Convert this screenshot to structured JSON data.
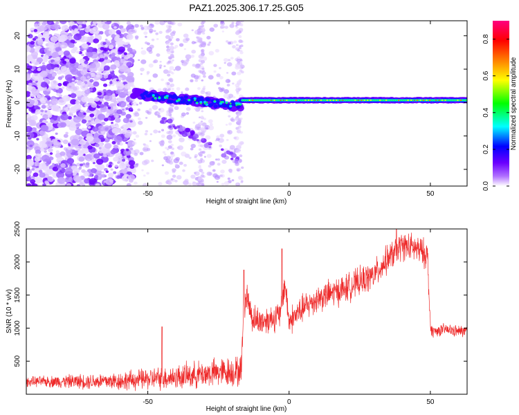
{
  "title": "PAZ1.2025.306.17.25.G05",
  "chart_data": [
    {
      "type": "heatmap",
      "name": "spectrogram",
      "xlabel": "Height of straight line (km)",
      "ylabel": "Frequency (Hz)",
      "xlim": [
        -93,
        63
      ],
      "ylim": [
        -25,
        24.5
      ],
      "xticks": [
        -50,
        0,
        50
      ],
      "yticks": [
        -20,
        -10,
        0,
        10,
        20
      ],
      "xticklabels": [
        "-50",
        "0",
        "50"
      ],
      "yticklabels": [
        "-20",
        "-10",
        "0",
        "10",
        "20"
      ],
      "description_bands": [
        {
          "x_from": -93,
          "x_to": -55,
          "kind": "noise",
          "density": "high"
        },
        {
          "x_from": -55,
          "x_to": -17,
          "kind": "signal+noise",
          "center_hz_from": 2.5,
          "center_hz_to": -1
        },
        {
          "x_from": -17,
          "x_to": 63,
          "kind": "signal",
          "center_hz": 0.7
        }
      ],
      "colorbar": {
        "label": "Normalized spectral amplitude",
        "range": [
          0.0,
          0.9
        ],
        "ticks": [
          0.0,
          0.2,
          0.4,
          0.6,
          0.8
        ],
        "ticklabels": [
          "0.0",
          "0.2",
          "0.4",
          "0.6",
          "0.8"
        ],
        "colormap": [
          "#ffffff",
          "#6b00ff",
          "#0000ff",
          "#00ffff",
          "#00ff00",
          "#ffff00",
          "#ff8000",
          "#ff0000",
          "#ff0080"
        ]
      }
    },
    {
      "type": "line",
      "name": "snr",
      "xlabel": "Height of straight line (km)",
      "ylabel": "SNR (10 * v/v)",
      "xlim": [
        -93,
        63
      ],
      "ylim": [
        0,
        2500
      ],
      "xticks": [
        -50,
        0,
        50
      ],
      "yticks": [
        500,
        1000,
        1500,
        2000,
        2500
      ],
      "xticklabels": [
        "-50",
        "0",
        "50"
      ],
      "yticklabels": [
        "500",
        "1000",
        "1500",
        "2000",
        "2500"
      ],
      "color": "#ee2a2a",
      "trend": {
        "x": [
          -93,
          -60,
          -40,
          -25,
          -17,
          -16,
          -15,
          -13,
          -10,
          -6,
          -3,
          -1.5,
          0,
          5,
          10,
          20,
          30,
          35,
          40,
          45,
          49,
          50,
          51,
          55,
          60,
          63
        ],
        "y": [
          190,
          200,
          260,
          330,
          350,
          1300,
          1500,
          1150,
          1100,
          1150,
          1200,
          1700,
          1100,
          1300,
          1450,
          1600,
          1800,
          2050,
          2250,
          2200,
          2100,
          1000,
          950,
          980,
          950,
          960
        ]
      },
      "spikes": [
        {
          "x": -16,
          "y": 1880
        },
        {
          "x": -2.5,
          "y": 2200
        },
        {
          "x": -45,
          "y": 1020
        },
        {
          "x": 38,
          "y": 2520
        }
      ]
    }
  ]
}
